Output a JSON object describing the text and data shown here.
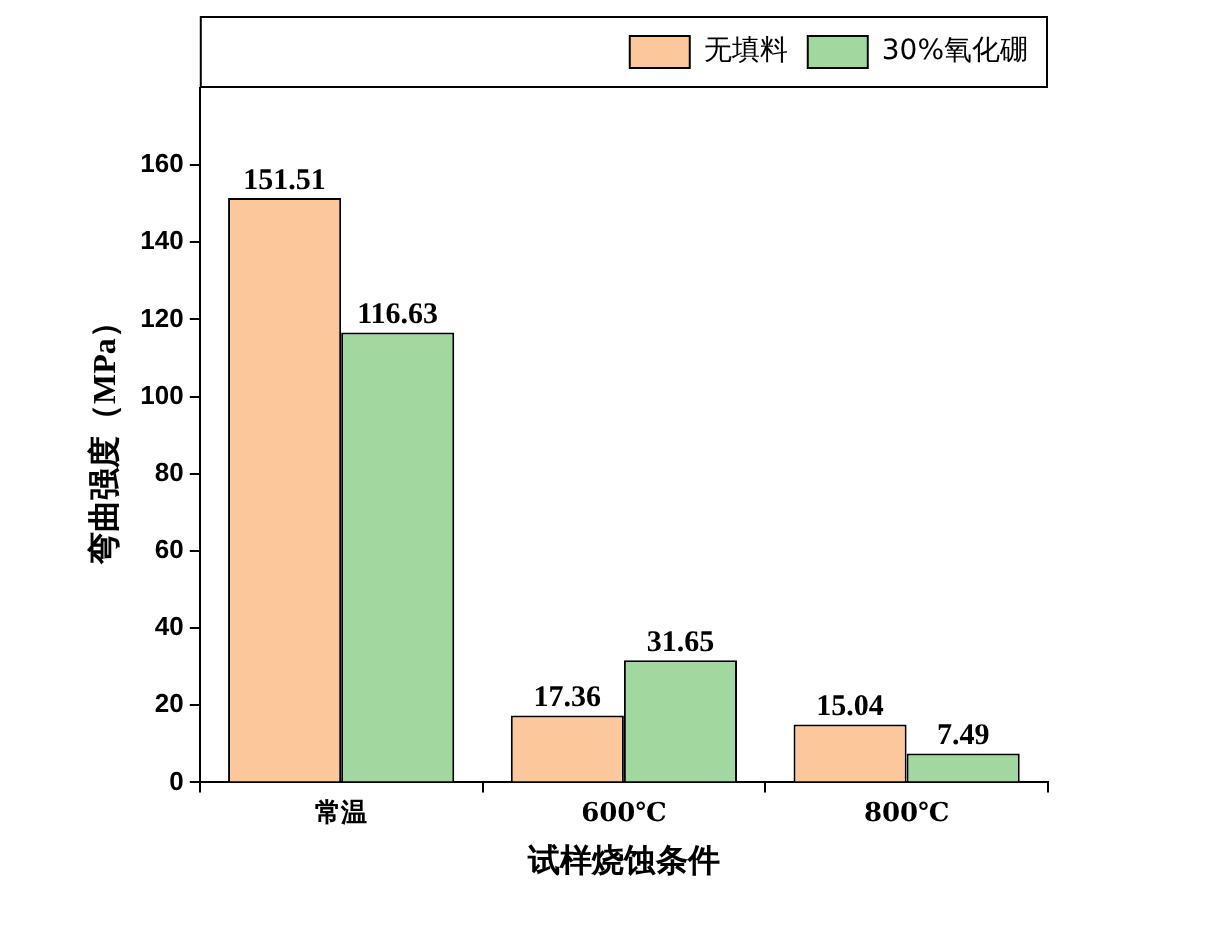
{
  "chart_data": {
    "type": "bar",
    "xlabel": "试样烧蚀条件",
    "ylabel": "弯曲强度（MPa）",
    "categories": [
      "常温",
      "600℃",
      "800℃"
    ],
    "series": [
      {
        "name": "无填料",
        "color": "#fcc89b",
        "values": [
          151.51,
          17.36,
          15.04
        ]
      },
      {
        "name": "30%氧化硼",
        "color": "#a0d8a0",
        "values": [
          116.63,
          31.65,
          7.49
        ]
      }
    ],
    "ylim": [
      0,
      180
    ],
    "yticks": [
      0,
      20,
      40,
      60,
      80,
      100,
      120,
      140,
      160
    ],
    "grid": false,
    "legend": "top right",
    "data_labels": true
  }
}
